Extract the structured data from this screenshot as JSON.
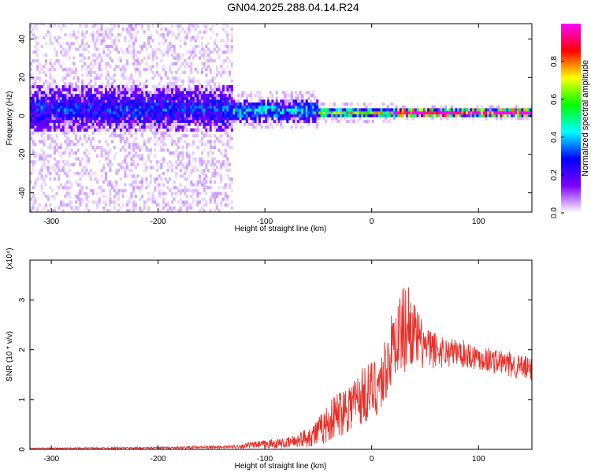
{
  "title": "GN04.2025.288.04.14.R24",
  "chart_data": [
    {
      "type": "heatmap",
      "xlabel": "Height of straight line (km)",
      "ylabel": "Frequency (Hz)",
      "xlim": [
        -320,
        150
      ],
      "ylim": [
        -50,
        48
      ],
      "xticks": [
        -300,
        -200,
        -100,
        0,
        100
      ],
      "yticks": [
        -40,
        -20,
        0,
        20,
        40
      ],
      "colorbar": {
        "label": "Normalized spectral amplitude",
        "range": [
          0.0,
          1.0
        ],
        "ticks": [
          0.0,
          0.2,
          0.4,
          0.6,
          0.8
        ],
        "tick_labels": [
          "0.0",
          "0.2",
          "0.4",
          "0.6",
          "0.8"
        ],
        "colormap": [
          "#ffffff",
          "#7f00ff",
          "#0000ff",
          "#00ffff",
          "#00ff00",
          "#ffff00",
          "#ff0000",
          "#ff00ff"
        ]
      },
      "bands": [
        {
          "x_start": -320,
          "x_end": -130,
          "center_hz": 3,
          "core_width_hz": 12,
          "core_level": 0.25,
          "halo_width_hz": 95,
          "halo_level": 0.05
        },
        {
          "x_start": -130,
          "x_end": -50,
          "center_hz": 2,
          "core_width_hz": 6,
          "core_level": 0.35,
          "halo_width_hz": 10,
          "halo_level": 0.05
        },
        {
          "x_start": -50,
          "x_end": 20,
          "center_hz": 1,
          "core_width_hz": 3,
          "core_level": 0.5,
          "halo_width_hz": 6,
          "halo_level": 0.05
        },
        {
          "x_start": 20,
          "x_end": 150,
          "center_hz": 1,
          "core_width_hz": 2,
          "core_level": 0.95,
          "halo_width_hz": 4,
          "halo_level": 0.05
        }
      ],
      "grid": false
    },
    {
      "type": "line",
      "xlabel": "Height of straight line (km)",
      "ylabel": "SNR (10 * v/v)",
      "y_multiplier": "(x10⁴)",
      "xlim": [
        -320,
        150
      ],
      "ylim": [
        0,
        3.8
      ],
      "xticks": [
        -300,
        -200,
        -100,
        0,
        100
      ],
      "yticks": [
        0,
        1,
        2,
        3
      ],
      "color": "#e8302a",
      "series": [
        {
          "x": [
            -320,
            -200,
            -130,
            -115,
            -100,
            -90,
            -80,
            -70,
            -60,
            -50,
            -40,
            -30,
            -20,
            -10,
            0,
            10,
            15,
            20,
            25,
            30,
            33,
            36,
            40,
            45,
            50,
            55,
            60,
            70,
            80,
            90,
            100,
            110,
            120,
            130,
            140,
            150
          ],
          "y": [
            0.02,
            0.03,
            0.05,
            0.08,
            0.1,
            0.12,
            0.12,
            0.18,
            0.25,
            0.35,
            0.55,
            0.75,
            0.9,
            1.05,
            1.2,
            1.4,
            1.75,
            2.1,
            2.3,
            2.4,
            2.5,
            2.5,
            2.3,
            2.15,
            2.05,
            2.0,
            2.0,
            1.95,
            1.95,
            1.9,
            1.85,
            1.8,
            1.75,
            1.7,
            1.65,
            1.6
          ],
          "noise": [
            0.01,
            0.02,
            0.03,
            0.06,
            0.08,
            0.1,
            0.1,
            0.14,
            0.2,
            0.3,
            0.4,
            0.5,
            0.55,
            0.6,
            0.6,
            0.65,
            0.75,
            0.7,
            0.8,
            0.9,
            0.95,
            0.8,
            0.65,
            0.55,
            0.45,
            0.4,
            0.38,
            0.3,
            0.28,
            0.28,
            0.26,
            0.26,
            0.26,
            0.26,
            0.25,
            0.25
          ]
        }
      ],
      "grid": false
    }
  ]
}
